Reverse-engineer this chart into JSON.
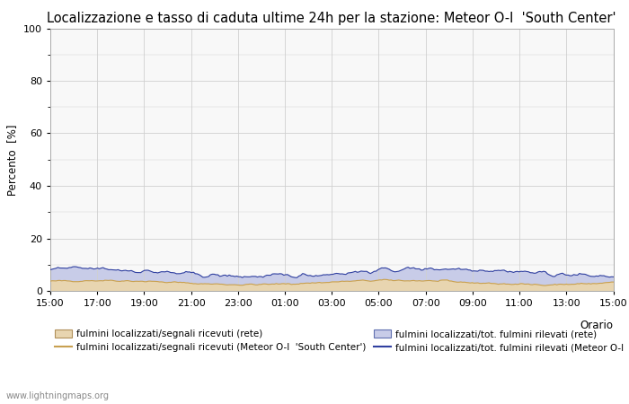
{
  "title": "Localizzazione e tasso di caduta ultime 24h per la stazione: Meteor O-I  'South Center'",
  "ylabel": "Percento  [%]",
  "xlabel": "Orario",
  "xlim": [
    0,
    24
  ],
  "ylim": [
    0,
    100
  ],
  "yticks": [
    0,
    20,
    40,
    60,
    80,
    100
  ],
  "ytick_minor": [
    10,
    30,
    50,
    70,
    90
  ],
  "xtick_labels": [
    "15:00",
    "17:00",
    "19:00",
    "21:00",
    "23:00",
    "01:00",
    "03:00",
    "05:00",
    "07:00",
    "09:00",
    "11:00",
    "13:00",
    "15:00"
  ],
  "bg_color": "#ffffff",
  "plot_bg_color": "#f8f8f8",
  "grid_color": "#d0d0d0",
  "fill_color_rete": "#e8d5b0",
  "fill_color_total": "#c8cce8",
  "line_color_rete": "#c8a050",
  "line_color_total": "#6878c0",
  "line_color_station_loc": "#c8a050",
  "line_color_station_tot": "#3040a0",
  "watermark": "www.lightningmaps.org",
  "legend": [
    "fulmini localizzati/segnali ricevuti (rete)",
    "fulmini localizzati/tot. fulmini rilevati (rete)",
    "fulmini localizzati/segnali ricevuti (Meteor O-I  'South Center')",
    "fulmini localizzati/tot. fulmini rilevati (Meteor O-I  'South Center')"
  ],
  "title_fontsize": 10.5,
  "axis_fontsize": 8.5,
  "tick_fontsize": 8,
  "legend_fontsize": 7.5,
  "watermark_fontsize": 7
}
